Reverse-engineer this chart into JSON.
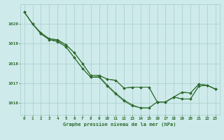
{
  "background_color": "#ceeaea",
  "grid_color": "#a8cccc",
  "line_color": "#2d6b2d",
  "marker_color": "#2d6b2d",
  "xlabel": "Graphe pression niveau de la mer (hPa)",
  "xlim": [
    -0.5,
    23.5
  ],
  "ylim": [
    1015.4,
    1021.0
  ],
  "yticks": [
    1016,
    1017,
    1018,
    1019,
    1020
  ],
  "xticks": [
    0,
    1,
    2,
    3,
    4,
    5,
    6,
    7,
    8,
    9,
    10,
    11,
    12,
    13,
    14,
    15,
    16,
    17,
    18,
    19,
    20,
    21,
    22,
    23
  ],
  "series": [
    [
      1020.6,
      1020.0,
      1019.5,
      1019.2,
      1019.1,
      1018.85,
      1018.3,
      1017.75,
      1017.3,
      1017.3,
      1016.85,
      1016.45,
      1016.1,
      1015.85,
      1015.75,
      1015.75,
      1016.05,
      1016.05,
      1016.3,
      1016.2,
      1016.2,
      1016.85,
      1016.9,
      1016.7
    ],
    [
      1020.6,
      1020.0,
      1019.5,
      1019.2,
      1019.15,
      1018.85,
      1018.3,
      1017.75,
      1017.3,
      1017.35,
      1016.9,
      1016.5,
      1016.15,
      1015.9,
      1015.75,
      1015.75,
      1016.05,
      1016.05,
      1016.3,
      1016.55,
      1016.5,
      1016.95,
      1016.9,
      1016.7
    ],
    [
      1020.6,
      1020.0,
      1019.55,
      1019.25,
      1019.2,
      1018.95,
      1018.55,
      1018.0,
      1017.4,
      1017.4,
      1017.2,
      1017.15,
      1016.75,
      1016.8,
      1016.8,
      1016.8,
      1016.05,
      1016.05,
      1016.3,
      1016.2,
      1016.2,
      1016.85,
      1016.9,
      1016.7
    ],
    [
      1020.6,
      1020.0,
      1019.55,
      1019.25,
      1019.2,
      1018.95,
      1018.55,
      1018.0,
      1017.4,
      1017.4,
      1017.2,
      1017.15,
      1016.75,
      1016.8,
      1016.8,
      1016.8,
      1016.05,
      1016.05,
      1016.3,
      1016.55,
      1016.5,
      1016.95,
      1016.9,
      1016.7
    ]
  ]
}
